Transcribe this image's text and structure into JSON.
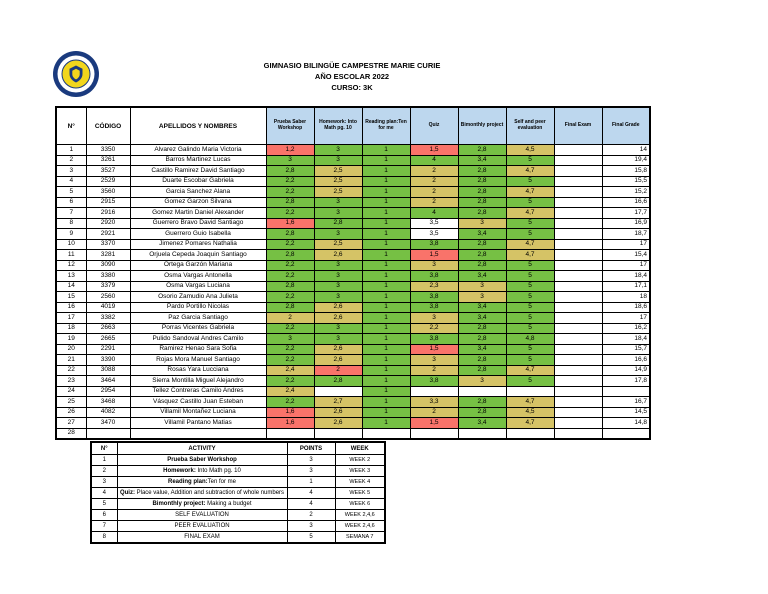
{
  "header": {
    "school": "GIMNASIO BILINGÜE CAMPESTRE MARIE CURIE",
    "year": "AÑO ESCOLAR 2022",
    "course": "CURSO: 3K",
    "logo": "school-crest"
  },
  "colors": {
    "red": "#f9736a",
    "green": "#76c044",
    "yellow": "#d5c366",
    "header_blue": "#bdd7ee",
    "crest_navy": "#1a3a7e",
    "crest_gold": "#f2d61c"
  },
  "main_table": {
    "columns": [
      "N°",
      "CÓDIGO",
      "APELLIDOS Y NOMBRES",
      "Prueba Saber Workshop",
      "Homework: Into Math pg. 10",
      "Reading plan:Ten for me",
      "Quiz",
      "Bimonthly project",
      "Self and peer evaluation",
      "Final Exam",
      "Final Grade"
    ],
    "rows": [
      {
        "n": "1",
        "code": "3350",
        "name": "Alvarez Galindo Maria Victoria",
        "marks": [
          [
            "1,2",
            "r"
          ],
          [
            "3",
            "g"
          ],
          [
            "1",
            "g"
          ],
          [
            "1,5",
            "r"
          ],
          [
            "2,8",
            "g"
          ],
          [
            "4,5",
            "y"
          ]
        ],
        "final_exam": "",
        "final_grade": "14"
      },
      {
        "n": "2",
        "code": "3261",
        "name": "Barros Martinez Lucas",
        "marks": [
          [
            "3",
            "g"
          ],
          [
            "3",
            "g"
          ],
          [
            "1",
            "g"
          ],
          [
            "4",
            "g"
          ],
          [
            "3,4",
            "g"
          ],
          [
            "5",
            "g"
          ]
        ],
        "final_exam": "",
        "final_grade": "19,4"
      },
      {
        "n": "3",
        "code": "3527",
        "name": "Castillo Ramirez David Santiago",
        "marks": [
          [
            "2,8",
            "g"
          ],
          [
            "2,5",
            "y"
          ],
          [
            "1",
            "g"
          ],
          [
            "2",
            "y"
          ],
          [
            "2,8",
            "g"
          ],
          [
            "4,7",
            "y"
          ]
        ],
        "final_exam": "",
        "final_grade": "15,8"
      },
      {
        "n": "4",
        "code": "2529",
        "name": "Duarte Escobar Gabriela",
        "marks": [
          [
            "2,2",
            "g"
          ],
          [
            "2,5",
            "y"
          ],
          [
            "1",
            "g"
          ],
          [
            "2",
            "y"
          ],
          [
            "2,8",
            "g"
          ],
          [
            "5",
            "g"
          ]
        ],
        "final_exam": "",
        "final_grade": "15,5"
      },
      {
        "n": "5",
        "code": "3560",
        "name": "Garcia Sanchez Alana",
        "marks": [
          [
            "2,2",
            "g"
          ],
          [
            "2,5",
            "y"
          ],
          [
            "1",
            "g"
          ],
          [
            "2",
            "y"
          ],
          [
            "2,8",
            "g"
          ],
          [
            "4,7",
            "y"
          ]
        ],
        "final_exam": "",
        "final_grade": "15,2"
      },
      {
        "n": "6",
        "code": "2915",
        "name": "Gomez Garzon Silvana",
        "marks": [
          [
            "2,8",
            "g"
          ],
          [
            "3",
            "g"
          ],
          [
            "1",
            "g"
          ],
          [
            "2",
            "y"
          ],
          [
            "2,8",
            "g"
          ],
          [
            "5",
            "g"
          ]
        ],
        "final_exam": "",
        "final_grade": "16,6"
      },
      {
        "n": "7",
        "code": "2916",
        "name": "Gomez Martin Daniel Alexander",
        "marks": [
          [
            "2,2",
            "g"
          ],
          [
            "3",
            "g"
          ],
          [
            "1",
            "g"
          ],
          [
            "4",
            "g"
          ],
          [
            "2,8",
            "g"
          ],
          [
            "4,7",
            "y"
          ]
        ],
        "final_exam": "",
        "final_grade": "17,7"
      },
      {
        "n": "8",
        "code": "2920",
        "name": "Guerrero Bravo David Santiago",
        "marks": [
          [
            "1,6",
            "r"
          ],
          [
            "2,8",
            "g"
          ],
          [
            "1",
            "g"
          ],
          [
            "3,5",
            "w"
          ],
          [
            "3",
            "y"
          ],
          [
            "5",
            "g"
          ]
        ],
        "final_exam": "",
        "final_grade": "16,9"
      },
      {
        "n": "9",
        "code": "2921",
        "name": "Guerrero Guio Isabella",
        "marks": [
          [
            "2,8",
            "g"
          ],
          [
            "3",
            "g"
          ],
          [
            "1",
            "g"
          ],
          [
            "3,5",
            "w"
          ],
          [
            "3,4",
            "g"
          ],
          [
            "5",
            "g"
          ]
        ],
        "final_exam": "",
        "final_grade": "18,7"
      },
      {
        "n": "10",
        "code": "3370",
        "name": "Jimenez Pomares Nathalia",
        "marks": [
          [
            "2,2",
            "g"
          ],
          [
            "2,5",
            "y"
          ],
          [
            "1",
            "g"
          ],
          [
            "3,8",
            "g"
          ],
          [
            "2,8",
            "g"
          ],
          [
            "4,7",
            "y"
          ]
        ],
        "final_exam": "",
        "final_grade": "17"
      },
      {
        "n": "11",
        "code": "3281",
        "name": "Orjuela Cepeda Joaquin Santiago",
        "marks": [
          [
            "2,8",
            "g"
          ],
          [
            "2,6",
            "y"
          ],
          [
            "1",
            "g"
          ],
          [
            "1,5",
            "r"
          ],
          [
            "2,8",
            "g"
          ],
          [
            "4,7",
            "y"
          ]
        ],
        "final_exam": "",
        "final_grade": "15,4"
      },
      {
        "n": "12",
        "code": "3090",
        "name": "Ortega Garzón Mariana",
        "marks": [
          [
            "2,2",
            "g"
          ],
          [
            "3",
            "g"
          ],
          [
            "1",
            "g"
          ],
          [
            "3",
            "y"
          ],
          [
            "2,8",
            "g"
          ],
          [
            "5",
            "g"
          ]
        ],
        "final_exam": "",
        "final_grade": "17"
      },
      {
        "n": "13",
        "code": "3380",
        "name": "Osma Vargas Antonella",
        "marks": [
          [
            "2,2",
            "g"
          ],
          [
            "3",
            "g"
          ],
          [
            "1",
            "g"
          ],
          [
            "3,8",
            "g"
          ],
          [
            "3,4",
            "g"
          ],
          [
            "5",
            "g"
          ]
        ],
        "final_exam": "",
        "final_grade": "18,4"
      },
      {
        "n": "14",
        "code": "3379",
        "name": "Osma Vargas Luciana",
        "marks": [
          [
            "2,8",
            "g"
          ],
          [
            "3",
            "g"
          ],
          [
            "1",
            "g"
          ],
          [
            "2,3",
            "y"
          ],
          [
            "3",
            "y"
          ],
          [
            "5",
            "g"
          ]
        ],
        "final_exam": "",
        "final_grade": "17,1"
      },
      {
        "n": "15",
        "code": "2560",
        "name": "Osorio Zamudio Ana Julieta",
        "marks": [
          [
            "2,2",
            "g"
          ],
          [
            "3",
            "g"
          ],
          [
            "1",
            "g"
          ],
          [
            "3,8",
            "g"
          ],
          [
            "3",
            "y"
          ],
          [
            "5",
            "g"
          ]
        ],
        "final_exam": "",
        "final_grade": "18"
      },
      {
        "n": "16",
        "code": "4019",
        "name": "Pardo Portillo Nicolas",
        "marks": [
          [
            "2,8",
            "g"
          ],
          [
            "2,6",
            "y"
          ],
          [
            "1",
            "g"
          ],
          [
            "3,8",
            "g"
          ],
          [
            "3,4",
            "g"
          ],
          [
            "5",
            "g"
          ]
        ],
        "final_exam": "",
        "final_grade": "18,6"
      },
      {
        "n": "17",
        "code": "3382",
        "name": "Paz Garcia Santiago",
        "marks": [
          [
            "2",
            "y"
          ],
          [
            "2,6",
            "y"
          ],
          [
            "1",
            "g"
          ],
          [
            "3",
            "y"
          ],
          [
            "3,4",
            "g"
          ],
          [
            "5",
            "g"
          ]
        ],
        "final_exam": "",
        "final_grade": "17"
      },
      {
        "n": "18",
        "code": "2663",
        "name": "Porras Vicentes Gabriela",
        "marks": [
          [
            "2,2",
            "g"
          ],
          [
            "3",
            "g"
          ],
          [
            "1",
            "g"
          ],
          [
            "2,2",
            "y"
          ],
          [
            "2,8",
            "g"
          ],
          [
            "5",
            "g"
          ]
        ],
        "final_exam": "",
        "final_grade": "16,2"
      },
      {
        "n": "19",
        "code": "2665",
        "name": "Pulido Sandoval Andres Camilo",
        "marks": [
          [
            "3",
            "g"
          ],
          [
            "3",
            "g"
          ],
          [
            "1",
            "g"
          ],
          [
            "3,8",
            "g"
          ],
          [
            "2,8",
            "g"
          ],
          [
            "4,8",
            "g"
          ]
        ],
        "final_exam": "",
        "final_grade": "18,4"
      },
      {
        "n": "20",
        "code": "2291",
        "name": "Ramirez Henao Sara Sofia",
        "marks": [
          [
            "2,2",
            "g"
          ],
          [
            "2,6",
            "y"
          ],
          [
            "1",
            "g"
          ],
          [
            "1,5",
            "r"
          ],
          [
            "3,4",
            "g"
          ],
          [
            "5",
            "g"
          ]
        ],
        "final_exam": "",
        "final_grade": "15,7"
      },
      {
        "n": "21",
        "code": "3390",
        "name": "Rojas Mora Manuel Santiago",
        "marks": [
          [
            "2,2",
            "g"
          ],
          [
            "2,6",
            "y"
          ],
          [
            "1",
            "g"
          ],
          [
            "3",
            "y"
          ],
          [
            "2,8",
            "g"
          ],
          [
            "5",
            "g"
          ]
        ],
        "final_exam": "",
        "final_grade": "16,6"
      },
      {
        "n": "22",
        "code": "3088",
        "name": "Rosas Yara Lucciana",
        "marks": [
          [
            "2,4",
            "y"
          ],
          [
            "2",
            "r"
          ],
          [
            "1",
            "g"
          ],
          [
            "2",
            "y"
          ],
          [
            "2,8",
            "g"
          ],
          [
            "4,7",
            "y"
          ]
        ],
        "final_exam": "",
        "final_grade": "14,9"
      },
      {
        "n": "23",
        "code": "3464",
        "name": "Sierra Montilla Miguel Alejandro",
        "marks": [
          [
            "2,2",
            "g"
          ],
          [
            "2,8",
            "g"
          ],
          [
            "1",
            "g"
          ],
          [
            "3,8",
            "g"
          ],
          [
            "3",
            "y"
          ],
          [
            "5",
            "g"
          ]
        ],
        "final_exam": "",
        "final_grade": "17,8"
      },
      {
        "n": "24",
        "code": "2954",
        "name": "Tellez Contreras Camilo Andres",
        "marks": [
          [
            "2,4",
            "y"
          ],
          [
            "",
            ""
          ],
          [
            "1",
            "g"
          ],
          [
            "",
            ""
          ],
          [
            "",
            ""
          ],
          [
            "",
            ""
          ]
        ],
        "final_exam": "",
        "final_grade": ""
      },
      {
        "n": "25",
        "code": "3468",
        "name": "Vásquez Castillo Juan Esteban",
        "marks": [
          [
            "2,2",
            "g"
          ],
          [
            "2,7",
            "y"
          ],
          [
            "1",
            "g"
          ],
          [
            "3,3",
            "y"
          ],
          [
            "2,8",
            "g"
          ],
          [
            "4,7",
            "y"
          ]
        ],
        "final_exam": "",
        "final_grade": "16,7"
      },
      {
        "n": "26",
        "code": "4082",
        "name": "Villamil Montañez Luciana",
        "marks": [
          [
            "1,6",
            "r"
          ],
          [
            "2,6",
            "y"
          ],
          [
            "1",
            "g"
          ],
          [
            "2",
            "y"
          ],
          [
            "2,8",
            "g"
          ],
          [
            "4,5",
            "y"
          ]
        ],
        "final_exam": "",
        "final_grade": "14,5"
      },
      {
        "n": "27",
        "code": "3470",
        "name": "Villamil Pantano Matias",
        "marks": [
          [
            "1,6",
            "r"
          ],
          [
            "2,6",
            "y"
          ],
          [
            "1",
            "g"
          ],
          [
            "1,5",
            "r"
          ],
          [
            "3,4",
            "g"
          ],
          [
            "4,7",
            "y"
          ]
        ],
        "final_exam": "",
        "final_grade": "14,8"
      },
      {
        "n": "28",
        "code": "",
        "name": "",
        "marks": [
          [
            "",
            ""
          ],
          [
            "",
            ""
          ],
          [
            "",
            ""
          ],
          [
            "",
            ""
          ],
          [
            "",
            ""
          ],
          [
            "",
            ""
          ]
        ],
        "final_exam": "",
        "final_grade": ""
      }
    ]
  },
  "legend_table": {
    "columns": [
      "N°",
      "ACTIVITY",
      "POINTS",
      "WEEK"
    ],
    "rows": [
      {
        "n": "1",
        "activity_bold": "Prueba Saber Workshop",
        "activity_rest": "",
        "points": "3",
        "week": "WEEK 2"
      },
      {
        "n": "2",
        "activity_bold": "Homework:",
        "activity_rest": " Into Math pg. 10",
        "points": "3",
        "week": "WEEK 3"
      },
      {
        "n": "3",
        "activity_bold": "Reading plan:",
        "activity_rest": "Ten for me",
        "points": "1",
        "week": "WEEK 4"
      },
      {
        "n": "4",
        "activity_bold": "Quiz:",
        "activity_rest": " Place value, Addition and subtraction of whole numbers",
        "points": "4",
        "week": "WEEK 5"
      },
      {
        "n": "5",
        "activity_bold": "Bimonthly project:",
        "activity_rest": " Making a budget",
        "points": "4",
        "week": "WEEK 6"
      },
      {
        "n": "6",
        "activity_bold": "",
        "activity_rest": "SELF EVALUATION",
        "points": "2",
        "week": "WEEK 2,4,6"
      },
      {
        "n": "7",
        "activity_bold": "",
        "activity_rest": "PEER EVALUATION",
        "points": "3",
        "week": "WEEK 2,4,6"
      },
      {
        "n": "8",
        "activity_bold": "",
        "activity_rest": "FINAL EXAM",
        "points": "5",
        "week": "SEMANA 7"
      }
    ]
  }
}
